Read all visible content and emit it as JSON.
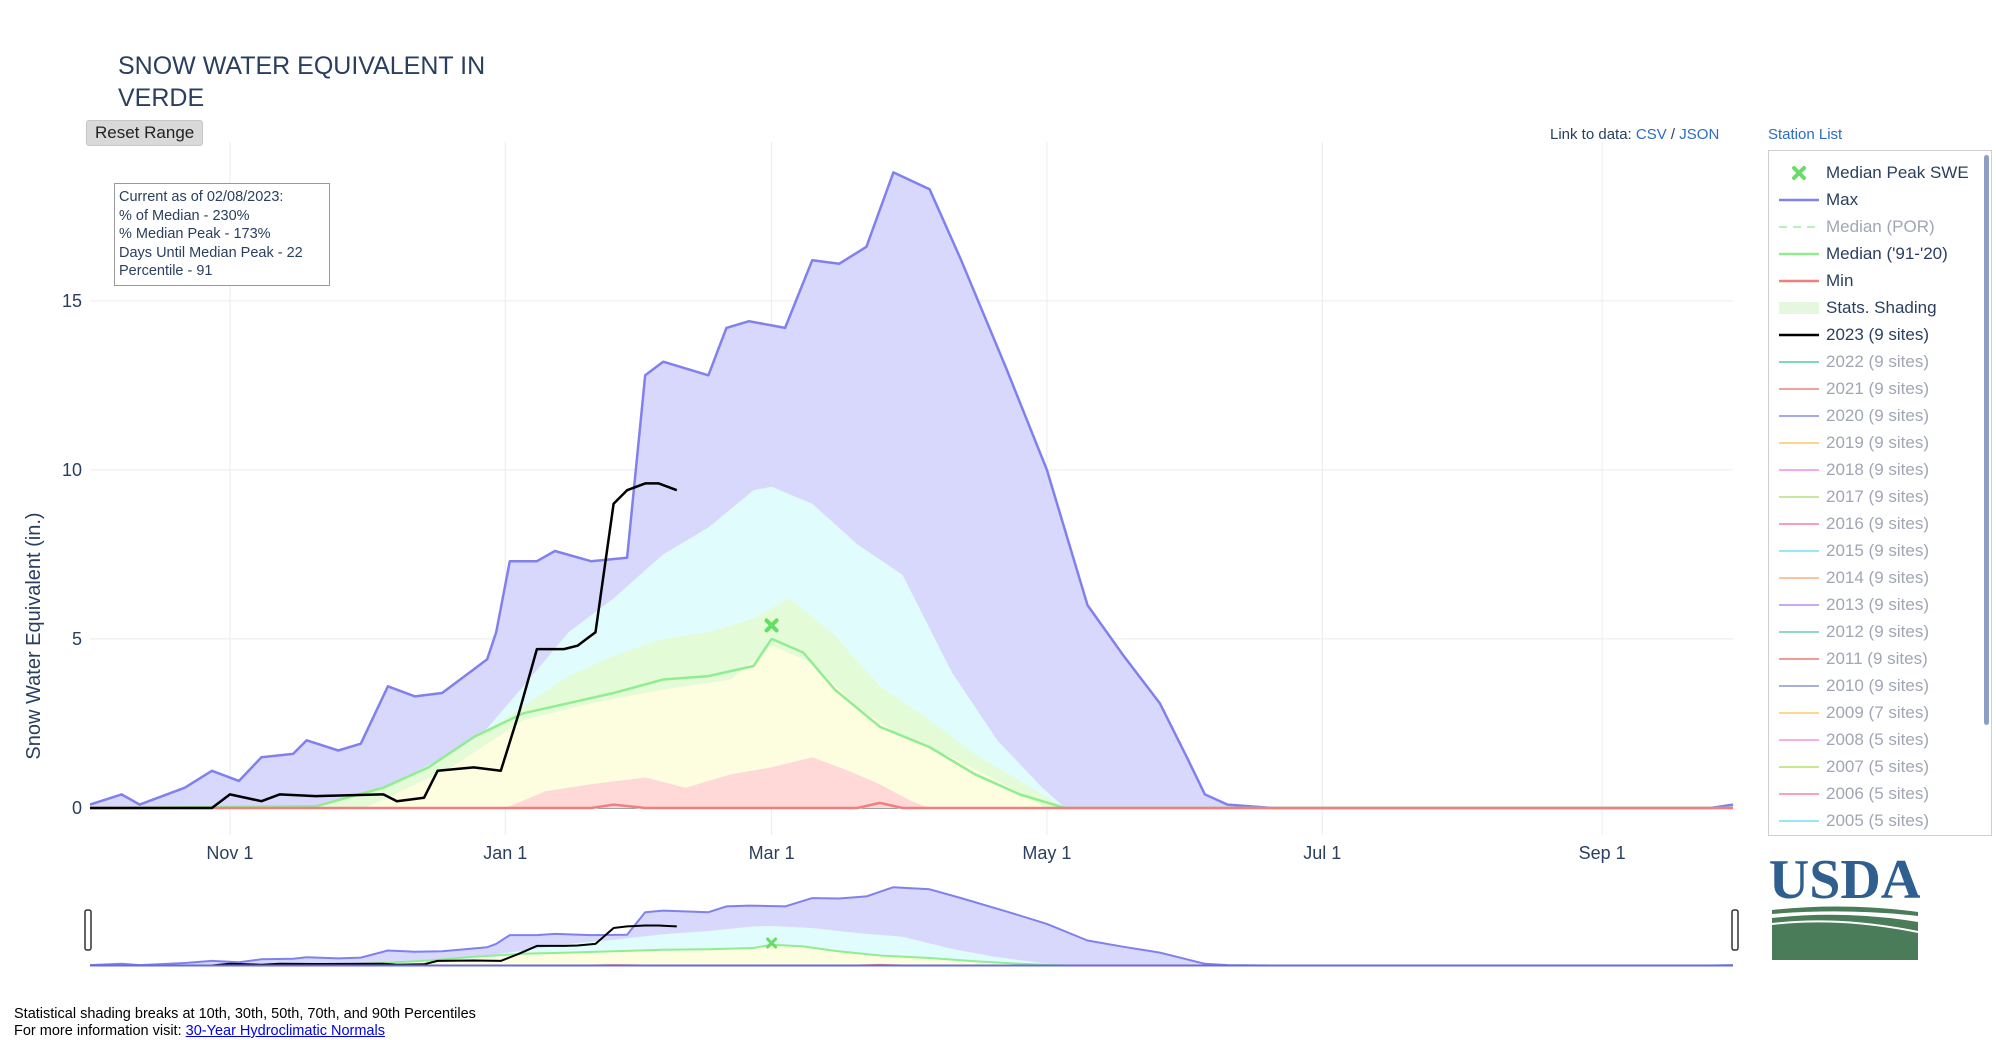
{
  "title_line1": "SNOW WATER EQUIVALENT IN",
  "title_line2": "VERDE",
  "reset_label": "Reset Range",
  "links": {
    "prefix": "Link to data:",
    "csv": "CSV",
    "sep": "/",
    "json": "JSON",
    "station_list": "Station List"
  },
  "info": {
    "line1": "Current as of 02/08/2023:",
    "line2": "% of Median - 230%",
    "line3": "% Median Peak - 173%",
    "line4": "Days Until Median Peak - 22",
    "line5": "Percentile - 91"
  },
  "footer": {
    "line1": "Statistical shading breaks at 10th, 30th, 50th, 70th, and 90th Percentiles",
    "line2_prefix": "For more information visit: ",
    "line2_link": "30-Year Hydroclimatic Normals"
  },
  "logo_text": "USDA",
  "colors": {
    "max": "#8080ee",
    "median_91_20": "#90ee90",
    "min": "#f08080",
    "current": "#000000",
    "p90": "#d8d8fc",
    "p70": "#e0fcfc",
    "p50": "#e4fbd8",
    "p30": "#fdfde0",
    "p10": "#ffd8d8",
    "logo_blue": "#2f5f8f",
    "logo_green": "#4a7c59"
  },
  "chart_data": {
    "type": "area",
    "ylabel": "Snow Water Equivalent (in.)",
    "xlabel": "",
    "x_axis": {
      "type": "date",
      "range": [
        "2022-10-01",
        "2023-09-30"
      ],
      "ticks": [
        {
          "date": "2022-11-01",
          "label": "Nov 1"
        },
        {
          "date": "2023-01-01",
          "label": "Jan 1"
        },
        {
          "date": "2023-03-01",
          "label": "Mar 1"
        },
        {
          "date": "2023-05-01",
          "label": "May 1"
        },
        {
          "date": "2023-07-01",
          "label": "Jul 1"
        },
        {
          "date": "2023-09-01",
          "label": "Sep 1"
        }
      ]
    },
    "y_axis": {
      "range": [
        -0.8,
        19.7
      ],
      "ticks": [
        0,
        5,
        10,
        15
      ]
    },
    "grid": true,
    "legend_placement": "right",
    "series": [
      {
        "name": "Max",
        "points": [
          [
            "2022-10-01",
            0.1
          ],
          [
            "2022-10-08",
            0.4
          ],
          [
            "2022-10-12",
            0.1
          ],
          [
            "2022-10-22",
            0.6
          ],
          [
            "2022-10-28",
            1.1
          ],
          [
            "2022-11-03",
            0.8
          ],
          [
            "2022-11-08",
            1.5
          ],
          [
            "2022-11-15",
            1.6
          ],
          [
            "2022-11-18",
            2.0
          ],
          [
            "2022-11-25",
            1.7
          ],
          [
            "2022-11-30",
            1.9
          ],
          [
            "2022-12-06",
            3.6
          ],
          [
            "2022-12-12",
            3.3
          ],
          [
            "2022-12-18",
            3.4
          ],
          [
            "2022-12-24",
            4.0
          ],
          [
            "2022-12-28",
            4.4
          ],
          [
            "2022-12-30",
            5.2
          ],
          [
            "2023-01-02",
            7.3
          ],
          [
            "2023-01-08",
            7.3
          ],
          [
            "2023-01-12",
            7.6
          ],
          [
            "2023-01-20",
            7.3
          ],
          [
            "2023-01-28",
            7.4
          ],
          [
            "2023-02-01",
            12.8
          ],
          [
            "2023-02-05",
            13.2
          ],
          [
            "2023-02-15",
            12.8
          ],
          [
            "2023-02-19",
            14.2
          ],
          [
            "2023-02-24",
            14.4
          ],
          [
            "2023-03-04",
            14.2
          ],
          [
            "2023-03-10",
            16.2
          ],
          [
            "2023-03-16",
            16.1
          ],
          [
            "2023-03-22",
            16.6
          ],
          [
            "2023-03-28",
            18.8
          ],
          [
            "2023-04-05",
            18.3
          ],
          [
            "2023-04-12",
            16.2
          ],
          [
            "2023-04-22",
            13.0
          ],
          [
            "2023-05-01",
            10.0
          ],
          [
            "2023-05-10",
            6.0
          ],
          [
            "2023-05-18",
            4.5
          ],
          [
            "2023-05-26",
            3.1
          ],
          [
            "2023-06-01",
            1.5
          ],
          [
            "2023-06-05",
            0.4
          ],
          [
            "2023-06-10",
            0.1
          ],
          [
            "2023-06-20",
            0.0
          ],
          [
            "2023-09-25",
            0.0
          ],
          [
            "2023-09-30",
            0.1
          ]
        ]
      },
      {
        "name": "Median ('91-'20)",
        "points": [
          [
            "2022-10-01",
            0.0
          ],
          [
            "2022-11-20",
            0.05
          ],
          [
            "2022-12-05",
            0.6
          ],
          [
            "2022-12-15",
            1.2
          ],
          [
            "2022-12-25",
            2.1
          ],
          [
            "2023-01-05",
            2.8
          ],
          [
            "2023-01-15",
            3.1
          ],
          [
            "2023-01-25",
            3.4
          ],
          [
            "2023-02-05",
            3.8
          ],
          [
            "2023-02-15",
            3.9
          ],
          [
            "2023-02-25",
            4.2
          ],
          [
            "2023-03-01",
            5.0
          ],
          [
            "2023-03-08",
            4.6
          ],
          [
            "2023-03-15",
            3.5
          ],
          [
            "2023-03-25",
            2.4
          ],
          [
            "2023-04-05",
            1.8
          ],
          [
            "2023-04-15",
            1.0
          ],
          [
            "2023-04-25",
            0.4
          ],
          [
            "2023-05-05",
            0.0
          ],
          [
            "2023-09-30",
            0.0
          ]
        ]
      },
      {
        "name": "Min",
        "points": [
          [
            "2022-10-01",
            0.0
          ],
          [
            "2023-01-20",
            0.0
          ],
          [
            "2023-01-25",
            0.1
          ],
          [
            "2023-02-01",
            0.0
          ],
          [
            "2023-03-20",
            0.0
          ],
          [
            "2023-03-25",
            0.15
          ],
          [
            "2023-03-30",
            0.0
          ],
          [
            "2023-09-30",
            0.0
          ]
        ]
      },
      {
        "name": "2023 (9 sites)",
        "points": [
          [
            "2022-10-01",
            0.0
          ],
          [
            "2022-10-28",
            0.0
          ],
          [
            "2022-11-01",
            0.4
          ],
          [
            "2022-11-08",
            0.2
          ],
          [
            "2022-11-12",
            0.4
          ],
          [
            "2022-11-20",
            0.35
          ],
          [
            "2022-12-05",
            0.4
          ],
          [
            "2022-12-08",
            0.2
          ],
          [
            "2022-12-14",
            0.3
          ],
          [
            "2022-12-17",
            1.1
          ],
          [
            "2022-12-25",
            1.2
          ],
          [
            "2022-12-31",
            1.1
          ],
          [
            "2023-01-04",
            2.8
          ],
          [
            "2023-01-08",
            4.7
          ],
          [
            "2023-01-14",
            4.7
          ],
          [
            "2023-01-17",
            4.8
          ],
          [
            "2023-01-21",
            5.2
          ],
          [
            "2023-01-25",
            9.0
          ],
          [
            "2023-01-28",
            9.4
          ],
          [
            "2023-02-01",
            9.6
          ],
          [
            "2023-02-04",
            9.6
          ],
          [
            "2023-02-06",
            9.5
          ],
          [
            "2023-02-08",
            9.4
          ]
        ]
      }
    ],
    "percentile_bands": [
      {
        "name": "90th",
        "points": [
          [
            "2022-11-10",
            0.0
          ],
          [
            "2022-11-25",
            0.1
          ],
          [
            "2022-12-10",
            0.8
          ],
          [
            "2022-12-25",
            1.9
          ],
          [
            "2023-01-05",
            3.6
          ],
          [
            "2023-01-15",
            5.2
          ],
          [
            "2023-01-25",
            6.2
          ],
          [
            "2023-02-05",
            7.5
          ],
          [
            "2023-02-15",
            8.3
          ],
          [
            "2023-02-25",
            9.4
          ],
          [
            "2023-03-01",
            9.5
          ],
          [
            "2023-03-10",
            9.0
          ],
          [
            "2023-03-20",
            7.8
          ],
          [
            "2023-03-30",
            6.9
          ],
          [
            "2023-04-10",
            4.0
          ],
          [
            "2023-04-20",
            2.0
          ],
          [
            "2023-04-30",
            0.6
          ],
          [
            "2023-05-05",
            0.0
          ]
        ]
      },
      {
        "name": "70th",
        "points": [
          [
            "2022-11-20",
            0.0
          ],
          [
            "2022-12-05",
            0.6
          ],
          [
            "2022-12-20",
            1.6
          ],
          [
            "2023-01-05",
            3.0
          ],
          [
            "2023-01-15",
            3.9
          ],
          [
            "2023-01-25",
            4.5
          ],
          [
            "2023-02-05",
            5.0
          ],
          [
            "2023-02-15",
            5.2
          ],
          [
            "2023-02-25",
            5.6
          ],
          [
            "2023-03-05",
            6.2
          ],
          [
            "2023-03-15",
            5.1
          ],
          [
            "2023-03-25",
            3.6
          ],
          [
            "2023-04-05",
            2.6
          ],
          [
            "2023-04-15",
            1.6
          ],
          [
            "2023-04-25",
            0.8
          ],
          [
            "2023-05-05",
            0.0
          ]
        ]
      },
      {
        "name": "50th",
        "points": [
          [
            "2022-12-01",
            0.0
          ],
          [
            "2022-12-20",
            1.2
          ],
          [
            "2023-01-05",
            2.6
          ],
          [
            "2023-01-20",
            3.1
          ],
          [
            "2023-02-05",
            3.5
          ],
          [
            "2023-02-20",
            3.8
          ],
          [
            "2023-03-01",
            4.8
          ],
          [
            "2023-03-10",
            4.3
          ],
          [
            "2023-03-20",
            3.0
          ],
          [
            "2023-03-30",
            2.1
          ],
          [
            "2023-04-10",
            1.5
          ],
          [
            "2023-04-20",
            0.8
          ],
          [
            "2023-05-01",
            0.0
          ]
        ]
      },
      {
        "name": "30th",
        "points": [
          [
            "2022-12-10",
            0.0
          ],
          [
            "2022-12-25",
            0.5
          ],
          [
            "2023-01-10",
            1.5
          ],
          [
            "2023-01-25",
            2.0
          ],
          [
            "2023-02-10",
            2.4
          ],
          [
            "2023-02-25",
            2.8
          ],
          [
            "2023-03-05",
            3.4
          ],
          [
            "2023-03-15",
            2.6
          ],
          [
            "2023-03-25",
            1.6
          ],
          [
            "2023-04-05",
            0.9
          ],
          [
            "2023-04-15",
            0.3
          ],
          [
            "2023-04-22",
            0.0
          ]
        ]
      },
      {
        "name": "10th",
        "points": [
          [
            "2023-01-01",
            0.0
          ],
          [
            "2023-01-10",
            0.5
          ],
          [
            "2023-01-20",
            0.7
          ],
          [
            "2023-02-01",
            0.9
          ],
          [
            "2023-02-10",
            0.6
          ],
          [
            "2023-02-20",
            1.0
          ],
          [
            "2023-03-01",
            1.2
          ],
          [
            "2023-03-10",
            1.5
          ],
          [
            "2023-03-18",
            1.1
          ],
          [
            "2023-03-25",
            0.7
          ],
          [
            "2023-04-01",
            0.2
          ],
          [
            "2023-04-05",
            0.0
          ]
        ]
      }
    ],
    "median_peak": {
      "date": "2023-03-01",
      "value": 5.4
    },
    "legend": [
      {
        "label": "Median Peak SWE",
        "type": "marker",
        "color": "#66dd66",
        "active": true
      },
      {
        "label": "Max",
        "type": "line",
        "color": "#8080ee",
        "active": true
      },
      {
        "label": "Median (POR)",
        "type": "dash",
        "color": "#b9f0b9",
        "active": false
      },
      {
        "label": "Median ('91-'20)",
        "type": "line",
        "color": "#90ee90",
        "active": true
      },
      {
        "label": "Min",
        "type": "line",
        "color": "#f08080",
        "active": true
      },
      {
        "label": "Stats. Shading",
        "type": "fill",
        "color": "#e6f7e0",
        "active": true
      },
      {
        "label": "2023 (9 sites)",
        "type": "line",
        "color": "#000000",
        "active": true
      },
      {
        "label": "2022 (9 sites)",
        "type": "line",
        "color": "#7fd8b8",
        "active": false
      },
      {
        "label": "2021 (9 sites)",
        "type": "line",
        "color": "#f2a0a0",
        "active": false
      },
      {
        "label": "2020 (9 sites)",
        "type": "line",
        "color": "#a4a8f0",
        "active": false
      },
      {
        "label": "2019 (9 sites)",
        "type": "line",
        "color": "#fcd28c",
        "active": false
      },
      {
        "label": "2018 (9 sites)",
        "type": "line",
        "color": "#f6a8f0",
        "active": false
      },
      {
        "label": "2017 (9 sites)",
        "type": "line",
        "color": "#c6e8a0",
        "active": false
      },
      {
        "label": "2016 (9 sites)",
        "type": "line",
        "color": "#f8a0b8",
        "active": false
      },
      {
        "label": "2015 (9 sites)",
        "type": "line",
        "color": "#9ae8f4",
        "active": false
      },
      {
        "label": "2014 (9 sites)",
        "type": "line",
        "color": "#fcc4a0",
        "active": false
      },
      {
        "label": "2013 (9 sites)",
        "type": "line",
        "color": "#cca8f0",
        "active": false
      },
      {
        "label": "2012 (9 sites)",
        "type": "line",
        "color": "#8cdcc0",
        "active": false
      },
      {
        "label": "2011 (9 sites)",
        "type": "line",
        "color": "#f49c94",
        "active": false
      },
      {
        "label": "2010 (9 sites)",
        "type": "line",
        "color": "#a8b0dc",
        "active": false
      },
      {
        "label": "2009 (7 sites)",
        "type": "line",
        "color": "#fcd890",
        "active": false
      },
      {
        "label": "2008 (5 sites)",
        "type": "line",
        "color": "#f8b0e4",
        "active": false
      },
      {
        "label": "2007 (5 sites)",
        "type": "line",
        "color": "#c8e890",
        "active": false
      },
      {
        "label": "2006 (5 sites)",
        "type": "line",
        "color": "#f4a4b4",
        "active": false
      },
      {
        "label": "2005 (5 sites)",
        "type": "line",
        "color": "#94e8f8",
        "active": false
      }
    ]
  }
}
